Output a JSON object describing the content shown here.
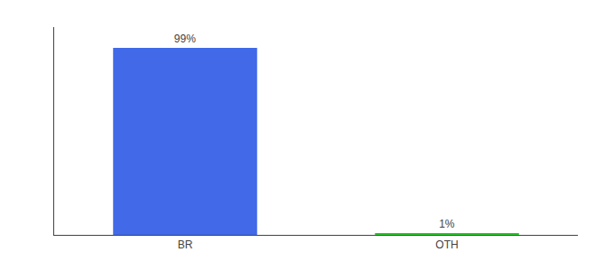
{
  "chart_data": {
    "type": "bar",
    "categories": [
      "BR",
      "OTH"
    ],
    "values": [
      99,
      1
    ],
    "value_labels": [
      "99%",
      "1%"
    ],
    "data_labels": true,
    "colors": [
      "#4169e8",
      "#22cc22"
    ],
    "ylim": [
      0,
      110
    ],
    "grid": false,
    "tick_labels": "x"
  }
}
